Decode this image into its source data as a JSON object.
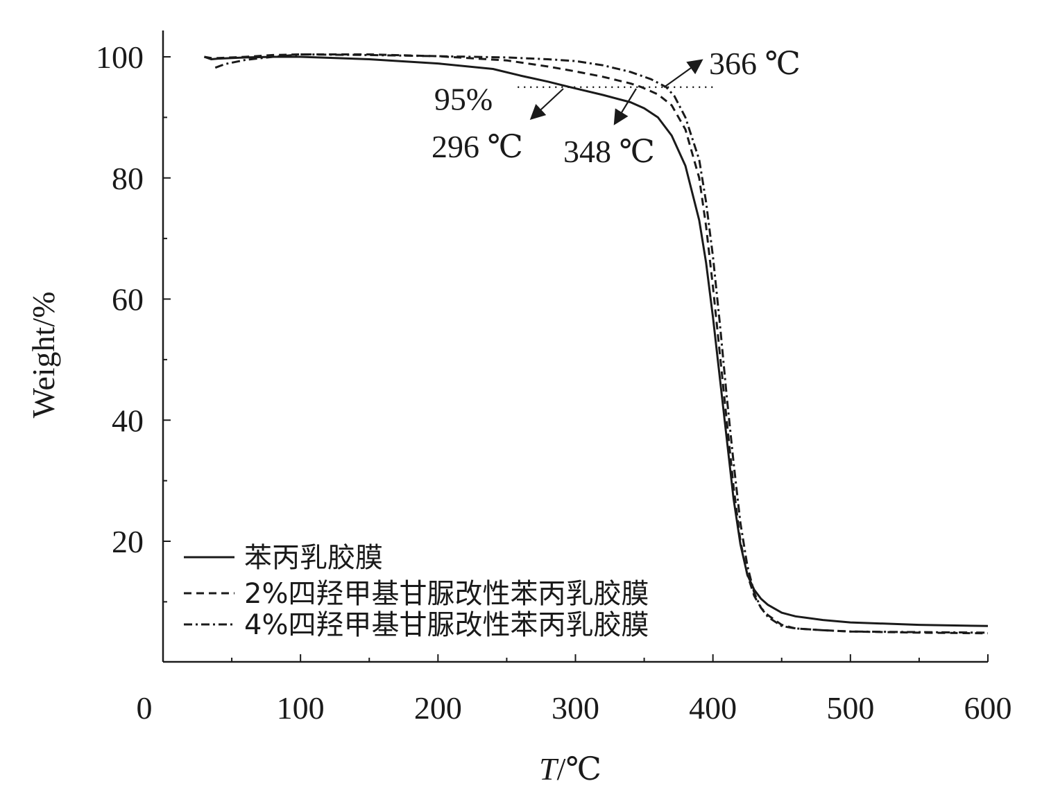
{
  "chart_data": {
    "type": "line",
    "xlabel_italic": "T",
    "xlabel_unit": "/℃",
    "ylabel": "Weight/%",
    "xlim": [
      0,
      600
    ],
    "ylim": [
      0,
      104
    ],
    "x_ticks": [
      0,
      100,
      200,
      300,
      400,
      500,
      600
    ],
    "x_tick_labels": [
      "0",
      "100",
      "200",
      "300",
      "400",
      "500",
      "600"
    ],
    "y_ticks": [
      20,
      40,
      60,
      80,
      100
    ],
    "y_tick_labels": [
      "20",
      "40",
      "60",
      "80",
      "100"
    ],
    "grid": false,
    "legend_position": "lower-left",
    "series": [
      {
        "name": "苯丙乳胶膜",
        "dash": "solid",
        "x": [
          30,
          35,
          40,
          50,
          60,
          80,
          100,
          150,
          200,
          240,
          260,
          280,
          296,
          320,
          340,
          350,
          360,
          370,
          380,
          390,
          395,
          400,
          405,
          410,
          415,
          420,
          425,
          430,
          435,
          440,
          450,
          460,
          480,
          500,
          550,
          600
        ],
        "y": [
          100.0,
          99.6,
          99.7,
          99.8,
          99.9,
          100.0,
          100.0,
          99.6,
          98.9,
          98.0,
          96.9,
          95.9,
          95.0,
          93.7,
          92.5,
          91.5,
          90.0,
          87.0,
          82.0,
          73.0,
          66.0,
          57.0,
          47.0,
          37.0,
          27.0,
          19.5,
          14.5,
          12.0,
          10.5,
          9.5,
          8.2,
          7.6,
          7.0,
          6.6,
          6.2,
          6.0
        ]
      },
      {
        "name": "2%四羟甲基甘脲改性苯丙乳胶膜",
        "dash": "dashed",
        "x": [
          30,
          35,
          40,
          50,
          60,
          80,
          100,
          150,
          200,
          250,
          280,
          300,
          320,
          340,
          348,
          360,
          370,
          380,
          390,
          395,
          400,
          405,
          410,
          415,
          420,
          425,
          430,
          435,
          440,
          450,
          460,
          480,
          500,
          550,
          600
        ],
        "y": [
          100.0,
          99.8,
          99.8,
          99.9,
          100.0,
          100.3,
          100.4,
          100.4,
          100.1,
          99.4,
          98.4,
          97.6,
          96.7,
          95.6,
          95.0,
          93.8,
          92.0,
          88.0,
          80.0,
          72.0,
          62.0,
          51.0,
          40.0,
          29.0,
          20.0,
          14.5,
          11.0,
          9.0,
          7.8,
          6.2,
          5.6,
          5.3,
          5.1,
          4.9,
          4.8
        ]
      },
      {
        "name": "4%四羟甲基甘脲改性苯丙乳胶膜",
        "dash": "dashdot",
        "x": [
          38,
          45,
          60,
          80,
          100,
          150,
          200,
          250,
          280,
          300,
          320,
          340,
          355,
          366,
          372,
          380,
          390,
          395,
          400,
          405,
          410,
          415,
          420,
          425,
          430,
          435,
          440,
          450,
          460,
          480,
          500,
          550,
          600
        ],
        "y": [
          98.2,
          98.8,
          99.5,
          100.0,
          100.4,
          100.3,
          100.1,
          99.9,
          99.6,
          99.3,
          98.6,
          97.5,
          96.3,
          95.0,
          93.5,
          90.0,
          83.0,
          76.0,
          67.0,
          56.0,
          44.0,
          33.0,
          23.0,
          16.0,
          11.5,
          9.0,
          7.5,
          6.0,
          5.6,
          5.3,
          5.1,
          5.0,
          4.9
        ]
      }
    ],
    "reference_line": {
      "y": 95,
      "x_from": 258,
      "x_to": 400,
      "label": "95%"
    },
    "annotations": [
      {
        "label": "296 ℃",
        "point": [
          296,
          95
        ],
        "arrow": "to-label"
      },
      {
        "label": "348 ℃",
        "point": [
          348,
          95
        ],
        "arrow": "to-label"
      },
      {
        "label": "366 ℃",
        "point": [
          366,
          95
        ],
        "arrow": "to-label"
      }
    ]
  }
}
